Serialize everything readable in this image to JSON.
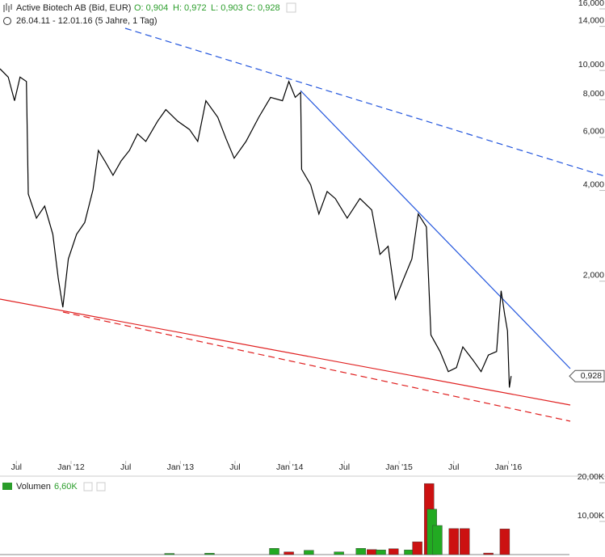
{
  "header": {
    "title": "Active Biotech AB (Bid, EUR)",
    "quotes": [
      "O: 0,904",
      "H: 0,972",
      "L: 0,903",
      "C: 0,928"
    ],
    "range": "26.04.11 - 12.01.16 (5 Jahre, 1 Tag)"
  },
  "chart_data": [
    {
      "type": "line",
      "log_y": true,
      "color": "#000000",
      "x": [
        1.2,
        2.1,
        2.8,
        3.4,
        4.1,
        4.3,
        5.2,
        6.1,
        7.0,
        7.6,
        8.1,
        8.7,
        9.6,
        10.5,
        11.4,
        12.0,
        12.7,
        13.6,
        14.5,
        15.4,
        16.3,
        17.2,
        18.5,
        19.4,
        20.7,
        22.0,
        22.9,
        23.8,
        25.1,
        26.0,
        26.9,
        28.2,
        29.6,
        30.9,
        32.2,
        32.9,
        33.6,
        34.2,
        34.3,
        35.3,
        36.2,
        37.1,
        38.0,
        39.3,
        40.7,
        42.0,
        42.9,
        43.8,
        44.6,
        45.5,
        46.4,
        47.1,
        48.0,
        48.5,
        49.5,
        50.4,
        51.3,
        52.0,
        53.1,
        54.0,
        54.8,
        55.7,
        56.2,
        56.6,
        56.9,
        57.1,
        57.3
      ],
      "values": [
        9.7,
        9.1,
        7.6,
        9.1,
        8.8,
        3.73,
        3.1,
        3.4,
        2.74,
        1.95,
        1.57,
        2.27,
        2.74,
        3.0,
        3.85,
        5.2,
        4.8,
        4.3,
        4.8,
        5.2,
        5.9,
        5.57,
        6.5,
        7.1,
        6.5,
        6.1,
        5.57,
        7.6,
        6.7,
        5.7,
        4.9,
        5.57,
        6.7,
        7.8,
        7.6,
        8.8,
        7.8,
        8.1,
        4.5,
        4.0,
        3.2,
        3.8,
        3.6,
        3.1,
        3.6,
        3.3,
        2.35,
        2.5,
        1.67,
        1.95,
        2.27,
        3.2,
        2.9,
        1.27,
        1.12,
        0.96,
        0.99,
        1.16,
        1.05,
        0.96,
        1.09,
        1.12,
        1.78,
        1.48,
        1.31,
        0.85,
        0.928
      ],
      "last_marker": {
        "value": 0.928,
        "label": "0,928"
      },
      "xlim": [
        1.2,
        63.7
      ],
      "xticks": [
        {
          "value": 3,
          "label": "Jul"
        },
        {
          "value": 9,
          "label": "Jan '12"
        },
        {
          "value": 15,
          "label": "Jul"
        },
        {
          "value": 21,
          "label": "Jan '13"
        },
        {
          "value": 27,
          "label": "Jul"
        },
        {
          "value": 33,
          "label": "Jan '14"
        },
        {
          "value": 39,
          "label": "Jul"
        },
        {
          "value": 45,
          "label": "Jan '15"
        },
        {
          "value": 51,
          "label": "Jul"
        },
        {
          "value": 57,
          "label": "Jan '16"
        }
      ],
      "ylim": [
        0.486,
        16.4
      ],
      "yticks": [
        {
          "value": 16,
          "label": "16,000"
        },
        {
          "value": 14,
          "label": "14,000"
        },
        {
          "value": 10,
          "label": "10,000"
        },
        {
          "value": 8,
          "label": "8,000"
        },
        {
          "value": 6,
          "label": "6,000"
        },
        {
          "value": 4,
          "label": "4,000"
        },
        {
          "value": 2,
          "label": "2,000"
        }
      ]
    },
    {
      "type": "bar",
      "title": "Volumen",
      "subtitle": "6,60K",
      "x": [
        19.8,
        24.2,
        31.3,
        32.9,
        35.1,
        38.4,
        40.8,
        42.0,
        43.0,
        44.4,
        46.1,
        47.0,
        48.3,
        48.6,
        49.2,
        51.0,
        52.2,
        54.8,
        56.6
      ],
      "values": [
        300,
        350,
        1600,
        700,
        1100,
        700,
        1600,
        1300,
        1200,
        1500,
        1200,
        3300,
        18300,
        11700,
        7500,
        6700,
        6700,
        400,
        6600
      ],
      "colors": [
        "#22aa22",
        "#22aa22",
        "#22aa22",
        "#cc1111",
        "#22aa22",
        "#22aa22",
        "#22aa22",
        "#cc1111",
        "#22aa22",
        "#cc1111",
        "#22aa22",
        "#cc1111",
        "#cc1111",
        "#22aa22",
        "#22aa22",
        "#cc1111",
        "#cc1111",
        "#cc1111",
        "#cc1111"
      ],
      "xlim": [
        1.2,
        63.7
      ],
      "ylim": [
        0,
        20000
      ],
      "yticks": [
        {
          "value": 20000,
          "label": "20,00K"
        },
        {
          "value": 10000,
          "label": "10,00K"
        }
      ]
    }
  ]
}
